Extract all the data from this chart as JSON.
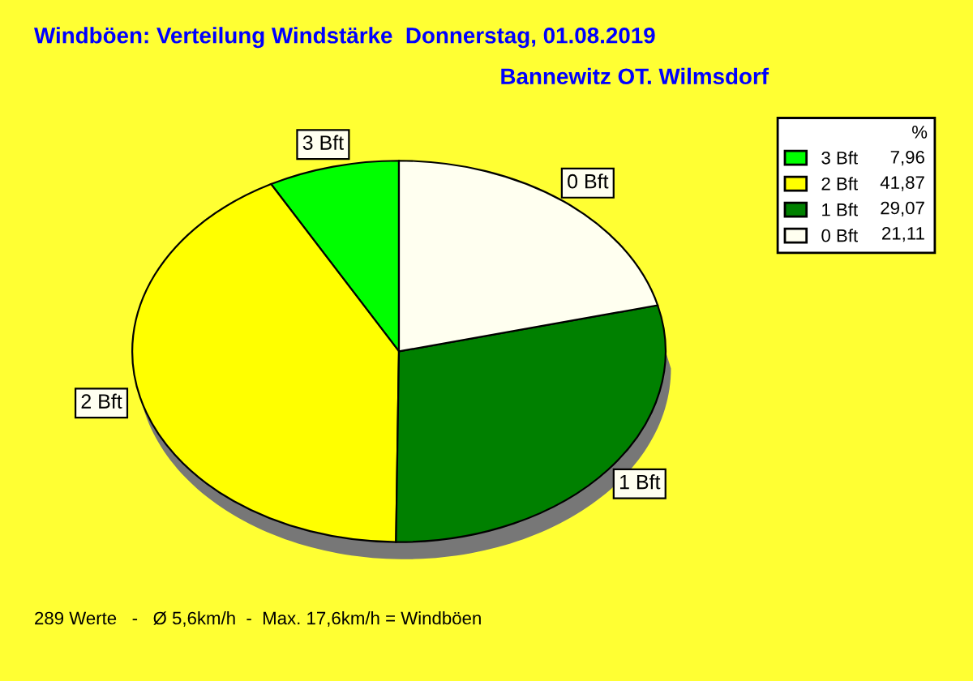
{
  "chart_data": {
    "type": "pie",
    "title": "Windböen: Verteilung Windstärke  Donnerstag, 01.08.2019",
    "subtitle": "Bannewitz OT. Wilmsdorf",
    "categories": [
      "3 Bft",
      "2 Bft",
      "1 Bft",
      "0 Bft"
    ],
    "values": [
      7.96,
      41.87,
      29.07,
      21.11
    ],
    "value_labels": [
      "7,96",
      "41,87",
      "29,07",
      "21,11"
    ],
    "colors": [
      "#00ff00",
      "#ffff00",
      "#008000",
      "#fffff0"
    ],
    "legend_title": "%",
    "legend": "top right",
    "annotations": [
      "289 Werte   -   Ø 5,6km/h  -  Max. 17,6km/h = Windböen"
    ]
  }
}
